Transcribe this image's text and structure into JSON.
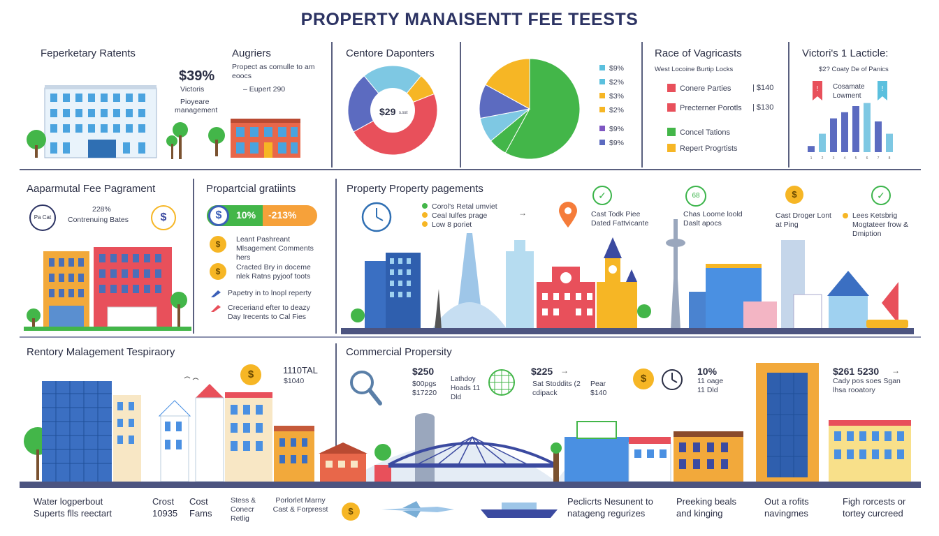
{
  "title": "PROPERTY MANAISENTT FEE TEESTS",
  "row1": {
    "p1": {
      "heading": "Feperketary Ratents"
    },
    "p2": {
      "heading": "Augriers",
      "desc": "Propect as comulle to am eoocs",
      "desc2": "– Eupert 290",
      "big": "$39%",
      "l1": "Victoris",
      "l2": "Pioyeare",
      "l3": "management"
    },
    "p3": {
      "heading": "Centore Daponters",
      "center": "$29",
      "center_small": "s.sst"
    },
    "p4": {
      "legend": [
        {
          "label": "$9%",
          "color": "#5bc0de"
        },
        {
          "label": "$2%",
          "color": "#5bc0de"
        },
        {
          "label": "$3%",
          "color": "#f6b625"
        },
        {
          "label": "$2%",
          "color": "#f6b625"
        },
        {
          "label": "$9%",
          "color": "#7e57c2"
        },
        {
          "label": "$9%",
          "color": "#5c6bc0"
        }
      ]
    },
    "p5": {
      "heading": "Race of Vagricasts",
      "sub": "West Locoine Burtip Locks",
      "items": [
        {
          "label": "Conere Parties",
          "value": "$140",
          "color": "#e8505b"
        },
        {
          "label": "Precterner Porotls",
          "value": "$130",
          "color": "#e8505b"
        },
        {
          "label": "Concel Tations",
          "value": "",
          "color": "#43b649"
        },
        {
          "label": "Repert Progrtists",
          "value": "",
          "color": "#f6b625"
        }
      ]
    },
    "p6": {
      "heading": "Victori's 1 Lacticle:",
      "sub": "$2? Coaty De of Panics",
      "label": "Cosamate Lowment",
      "ticks": [
        "1",
        "2",
        "3",
        "4",
        "5",
        "6",
        "7",
        "8"
      ]
    }
  },
  "row2": {
    "p1": {
      "heading": "Aaparmutal Fee Pagrament",
      "stat": "228%",
      "stat_label": "Contrenuing Bates",
      "icon_text": "Pa Cat"
    },
    "p2": {
      "heading": "Propartcial gratiints",
      "pill_left": "10%",
      "pill_right": "-213%",
      "items": [
        {
          "text": "Leant Pashreant Mlsagement Comments hers"
        },
        {
          "text": "Cracted Bry in doceme nlek Ratns pyjoof toots"
        },
        {
          "text": "Papetry in to lnopl reperty"
        },
        {
          "text": "Creceriand efter to deazy Day Irecents to Cal Fies"
        }
      ]
    },
    "p3": {
      "heading": "Property Property pagements",
      "list": [
        {
          "text": "Corol's Retal umviet",
          "color": "#43b649"
        },
        {
          "text": "Ceal Iulfes prage",
          "color": "#f6b625"
        },
        {
          "text": "Low 8 poriet",
          "color": "#f6b625"
        }
      ],
      "c1": "Cast Todk Piee Dated Fattvicante",
      "c2": "Chas Loome loold Daslt apocs",
      "c2_icon": "68",
      "c3": "Cast Droger Lont at Ping",
      "c4": "Lees Ketsbrig Mogtateer frow & Dmiption"
    }
  },
  "row3": {
    "left": {
      "heading": "Rentory Malagement Tespiraory",
      "n1": "1110TAL",
      "n2": "$1040"
    },
    "right": {
      "heading": "Commercial Propersity",
      "b1_val": "$250",
      "b1_sub": "$00pgs $17220",
      "b1_note": "Lathdoy Hoads 11 Dld",
      "b2_val": "$225",
      "b2_sub": "Sat Stoddits (2 cdipack",
      "b2_note": "Pear $140",
      "b3_val": "10%",
      "b3_sub": "11 oage 11 Dld",
      "b4_val": "$261 5230",
      "b4_sub": "Cady pos soes Sgan lhsa rooatory"
    }
  },
  "footer": [
    "Water logperbout Superts flls reectart",
    "Crost 10935",
    "Cost Fams",
    "Stess & Conecr Retlig",
    "Porlorlet Marny Cast & Forpresst",
    "Peclicrts Nesunent to natageng regurizes",
    "Preeking beals and kinging",
    "Out a rofits navingmes",
    "Figh rorcests or tortey curcreed"
  ],
  "chart_data": [
    {
      "type": "pie",
      "title": "Centore Daponters",
      "note": "donut",
      "slices": [
        {
          "color": "#e8505b",
          "value": 48
        },
        {
          "color": "#5c6bc0",
          "value": 22
        },
        {
          "color": "#7ec8e3",
          "value": 22
        },
        {
          "color": "#f6b625",
          "value": 8
        }
      ]
    },
    {
      "type": "pie",
      "slices": [
        {
          "color": "#43b649",
          "value": 58
        },
        {
          "color": "#43b649",
          "value": 6
        },
        {
          "color": "#7ec8e3",
          "value": 8
        },
        {
          "color": "#5c6bc0",
          "value": 11
        },
        {
          "color": "#f6b625",
          "value": 17
        }
      ]
    },
    {
      "type": "bar",
      "title": "Victori's 1 Lacticle:",
      "categories": [
        "1",
        "2",
        "3",
        "4",
        "5",
        "6",
        "7",
        "8"
      ],
      "values": [
        10,
        30,
        55,
        65,
        75,
        80,
        50,
        30
      ],
      "colors": [
        "#5c6bc0",
        "#7ec8e3",
        "#5c6bc0",
        "#5c6bc0",
        "#5c6bc0",
        "#7ec8e3",
        "#5c6bc0",
        "#7ec8e3"
      ],
      "ylim": [
        0,
        100
      ]
    }
  ]
}
